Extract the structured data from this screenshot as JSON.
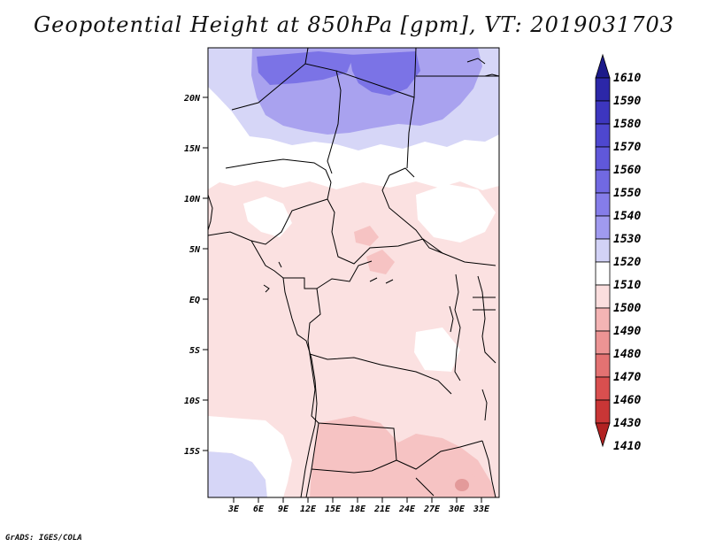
{
  "title": "Geopotential Height at 850hPa [gpm], VT: 2019031703",
  "footer": "GrADS: IGES/COLA",
  "colors": {
    "blue_strong": "#7b73e6",
    "blue_mid": "#a9a2ef",
    "blue_light": "#d6d6f7",
    "white": "#ffffff",
    "pink_light": "#fbe1e1",
    "pink_mid": "#f6c3c3",
    "red_center": "#e39a9a",
    "border_line": "#000000"
  },
  "map": {
    "lat_labels": [
      "20N",
      "15N",
      "10N",
      "5N",
      "EQ",
      "5S",
      "10S",
      "15S"
    ],
    "lon_labels": [
      "3E",
      "6E",
      "9E",
      "12E",
      "15E",
      "18E",
      "21E",
      "24E",
      "27E",
      "30E",
      "33E"
    ]
  },
  "colorbar": {
    "labels": [
      "1610",
      "1590",
      "1580",
      "1570",
      "1560",
      "1550",
      "1540",
      "1530",
      "1520",
      "1510",
      "1500",
      "1490",
      "1480",
      "1470",
      "1460",
      "1430",
      "1410"
    ],
    "colors": [
      "#1c1a8a",
      "#2c27a8",
      "#3d36bf",
      "#4e47cf",
      "#6058da",
      "#7169e2",
      "#857de9",
      "#a09aef",
      "#d2d2f6",
      "#ffffff",
      "#fbdede",
      "#f4b4b4",
      "#ec9494",
      "#e37272",
      "#d94f4f",
      "#c93636",
      "#b22222"
    ]
  }
}
